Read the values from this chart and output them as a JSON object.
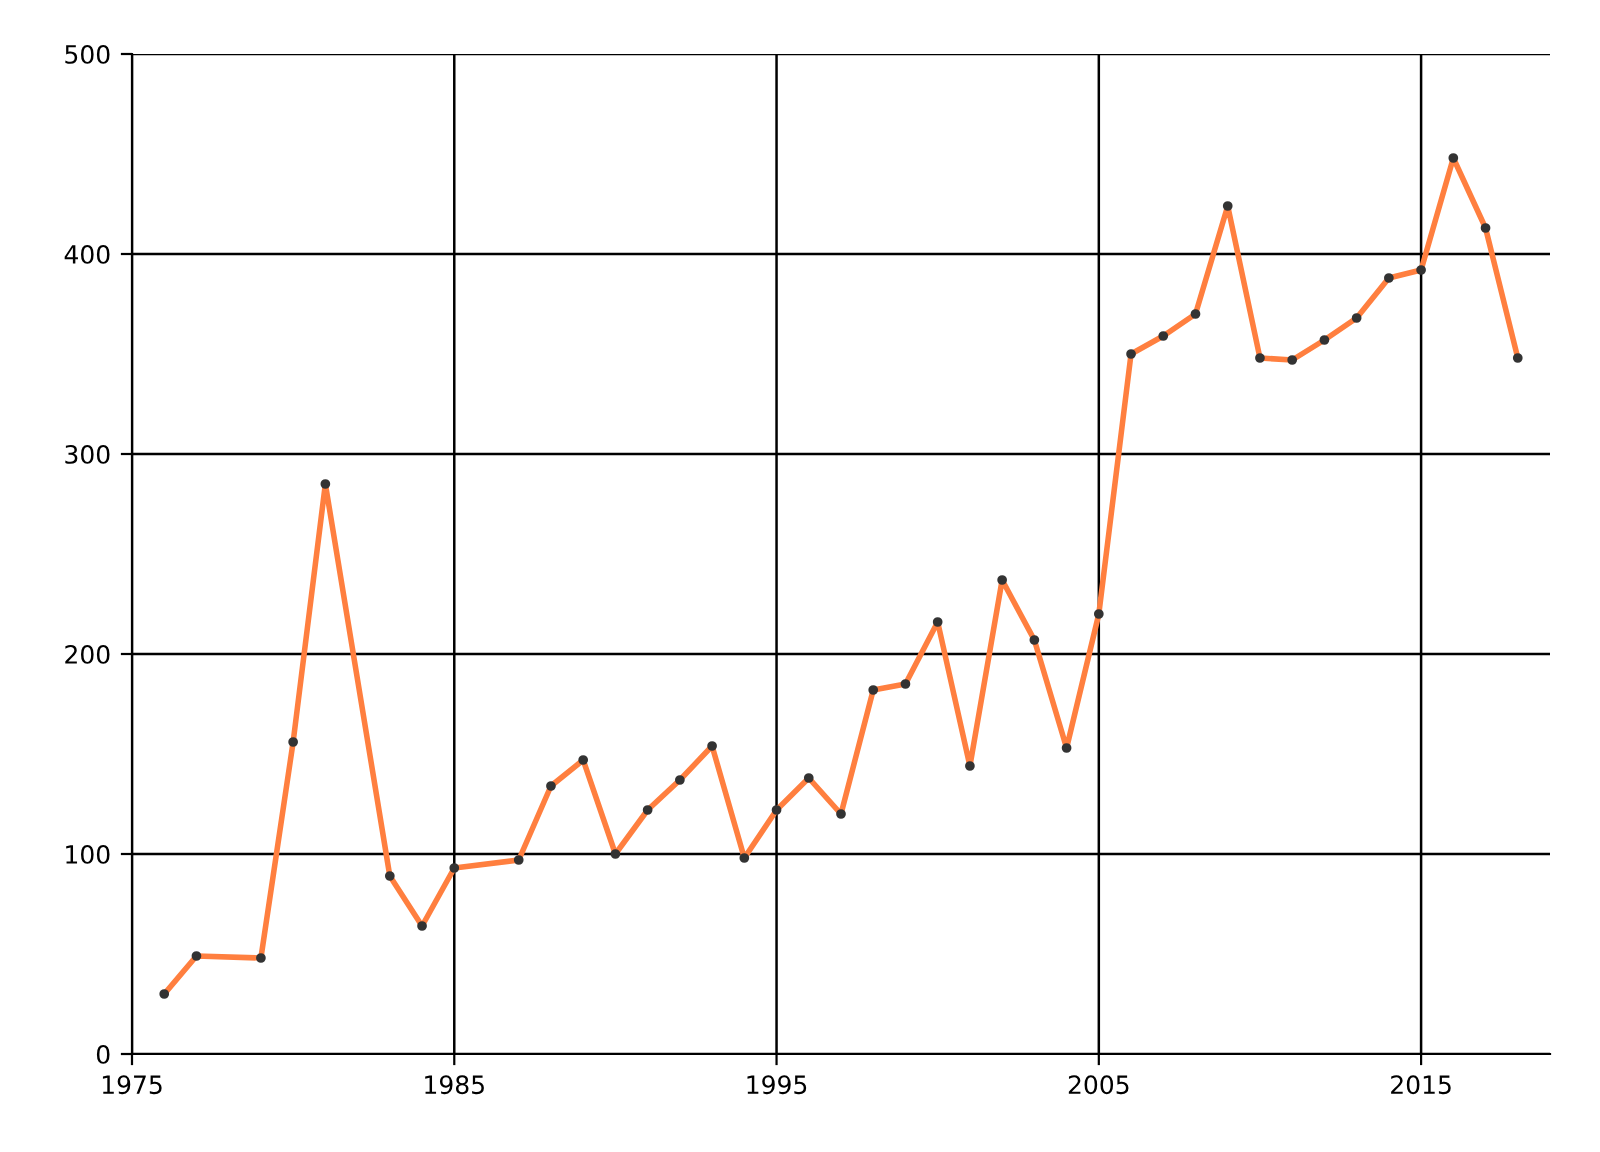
{
  "chart_data": {
    "type": "line",
    "x": [
      1976,
      1977,
      1979,
      1980,
      1981,
      1983,
      1984,
      1985,
      1987,
      1988,
      1989,
      1990,
      1991,
      1992,
      1993,
      1994,
      1995,
      1996,
      1997,
      1998,
      1999,
      2000,
      2001,
      2002,
      2003,
      2004,
      2005,
      2006,
      2007,
      2008,
      2009,
      2010,
      2011,
      2012,
      2013,
      2014,
      2015,
      2016,
      2017,
      2018
    ],
    "series": [
      {
        "color": "#ff7f3f",
        "values": [
          30,
          49,
          48,
          156,
          285,
          89,
          64,
          93,
          97,
          134,
          147,
          100,
          122,
          137,
          154,
          98,
          122,
          138,
          120,
          182,
          185,
          216,
          144,
          237,
          207,
          153,
          220,
          350,
          359,
          370,
          424,
          348,
          347,
          357,
          368,
          388,
          392,
          448,
          413,
          348
        ]
      }
    ],
    "xlim": [
      1975,
      2019
    ],
    "xticks": [
      1975,
      1985,
      1995,
      2005,
      2015
    ],
    "ylim": [
      0,
      500
    ],
    "yticks": [
      0,
      100,
      200,
      300,
      400,
      500
    ],
    "grid": true,
    "marker": "circle",
    "line_style": "solid",
    "legend": false
  }
}
